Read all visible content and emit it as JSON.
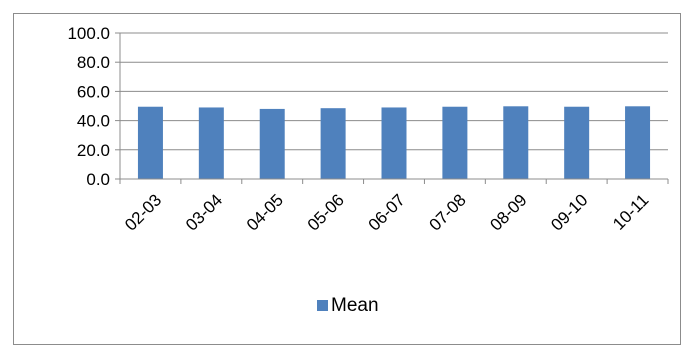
{
  "chart_data": {
    "type": "bar",
    "categories": [
      "02-03",
      "03-04",
      "04-05",
      "05-06",
      "06-07",
      "07-08",
      "08-09",
      "09-10",
      "10-11"
    ],
    "series": [
      {
        "name": "Mean",
        "values": [
          49.5,
          49.0,
          48.0,
          48.5,
          49.0,
          49.5,
          49.8,
          49.5,
          49.8
        ],
        "color": "#4f81bd"
      }
    ],
    "yticks": [
      "0.0",
      "20.0",
      "40.0",
      "60.0",
      "80.0",
      "100.0"
    ],
    "ylim": [
      0,
      100
    ],
    "grid": true,
    "legend": "bottom"
  }
}
